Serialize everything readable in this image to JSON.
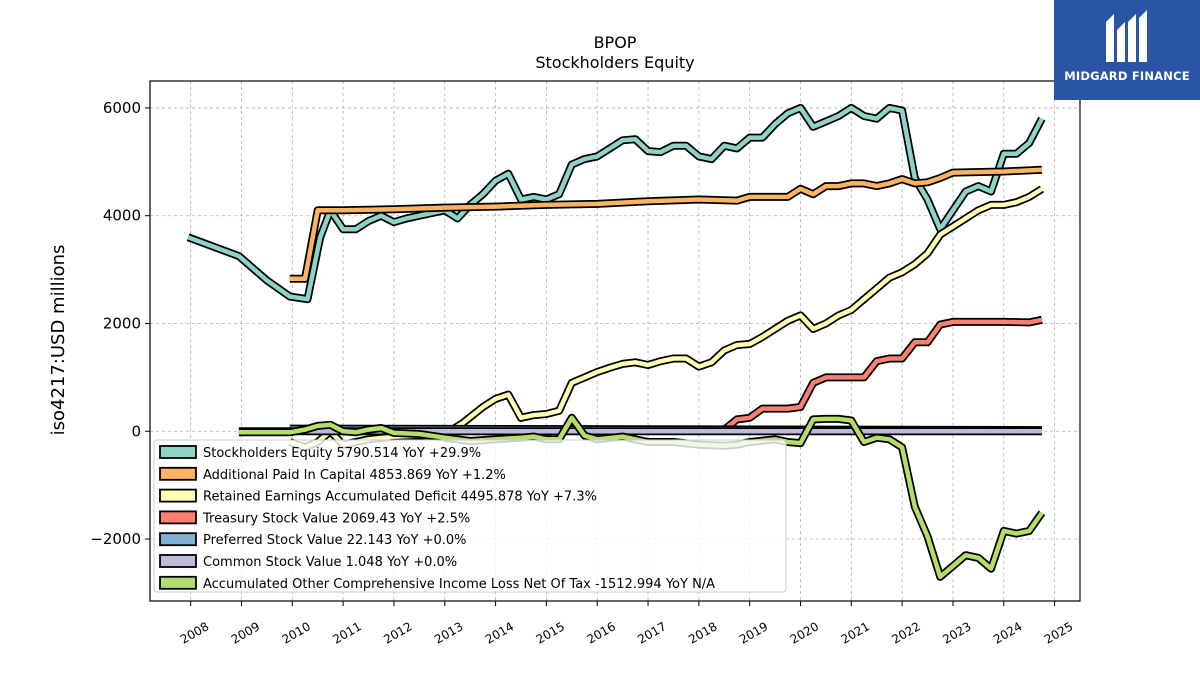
{
  "chart_data": {
    "type": "line",
    "title": "BPOP",
    "subtitle": "Stockholders  Equity",
    "ylabel": "iso4217:USD  millions",
    "xlabel": "",
    "xlim": [
      2007.2,
      2025.5
    ],
    "ylim": [
      -3150,
      6500
    ],
    "yticks": [
      -2000,
      0,
      2000,
      4000,
      6000
    ],
    "xticks": [
      "2008",
      "2009",
      "2010",
      "2011",
      "2012",
      "2013",
      "2014",
      "2015",
      "2016",
      "2017",
      "2018",
      "2019",
      "2020",
      "2021",
      "2022",
      "2023",
      "2024",
      "2025"
    ],
    "grid": true,
    "legend_position": "lower-left",
    "series": [
      {
        "name": "Stockholders Equity",
        "legend": "Stockholders Equity  5790.514 YoY +29.9%",
        "color": "#8dd3c7",
        "points": [
          [
            2007.95,
            3600
          ],
          [
            2008.95,
            3250
          ],
          [
            2009.5,
            2800
          ],
          [
            2009.95,
            2500
          ],
          [
            2010.3,
            2450
          ],
          [
            2010.55,
            3600
          ],
          [
            2010.75,
            4100
          ],
          [
            2011.0,
            3750
          ],
          [
            2011.25,
            3750
          ],
          [
            2011.5,
            3900
          ],
          [
            2011.75,
            4000
          ],
          [
            2012.0,
            3880
          ],
          [
            2012.25,
            3950
          ],
          [
            2012.5,
            4000
          ],
          [
            2012.75,
            4050
          ],
          [
            2013.0,
            4100
          ],
          [
            2013.25,
            3950
          ],
          [
            2013.5,
            4200
          ],
          [
            2013.75,
            4400
          ],
          [
            2014.0,
            4650
          ],
          [
            2014.25,
            4780
          ],
          [
            2014.5,
            4300
          ],
          [
            2014.75,
            4350
          ],
          [
            2015.0,
            4300
          ],
          [
            2015.25,
            4400
          ],
          [
            2015.5,
            4950
          ],
          [
            2015.75,
            5050
          ],
          [
            2016.0,
            5100
          ],
          [
            2016.25,
            5250
          ],
          [
            2016.5,
            5400
          ],
          [
            2016.75,
            5420
          ],
          [
            2017.0,
            5200
          ],
          [
            2017.25,
            5180
          ],
          [
            2017.5,
            5300
          ],
          [
            2017.75,
            5300
          ],
          [
            2018.0,
            5100
          ],
          [
            2018.25,
            5050
          ],
          [
            2018.5,
            5300
          ],
          [
            2018.75,
            5250
          ],
          [
            2019.0,
            5450
          ],
          [
            2019.25,
            5450
          ],
          [
            2019.5,
            5700
          ],
          [
            2019.75,
            5900
          ],
          [
            2020.0,
            6000
          ],
          [
            2020.25,
            5650
          ],
          [
            2020.5,
            5750
          ],
          [
            2020.75,
            5850
          ],
          [
            2021.0,
            6000
          ],
          [
            2021.25,
            5850
          ],
          [
            2021.5,
            5800
          ],
          [
            2021.75,
            6000
          ],
          [
            2022.0,
            5950
          ],
          [
            2022.25,
            4700
          ],
          [
            2022.5,
            4300
          ],
          [
            2022.75,
            3750
          ],
          [
            2023.0,
            4100
          ],
          [
            2023.25,
            4450
          ],
          [
            2023.5,
            4550
          ],
          [
            2023.75,
            4450
          ],
          [
            2024.0,
            5150
          ],
          [
            2024.25,
            5150
          ],
          [
            2024.5,
            5350
          ],
          [
            2024.75,
            5800
          ]
        ]
      },
      {
        "name": "Additional Paid In Capital",
        "legend": "Additional Paid In Capital  4853.869 YoY +1.2%",
        "color": "#fdb462",
        "points": [
          [
            2009.95,
            2830
          ],
          [
            2010.25,
            2830
          ],
          [
            2010.5,
            4100
          ],
          [
            2011.0,
            4100
          ],
          [
            2012.0,
            4120
          ],
          [
            2013.0,
            4150
          ],
          [
            2014.0,
            4170
          ],
          [
            2015.0,
            4200
          ],
          [
            2016.0,
            4220
          ],
          [
            2017.0,
            4270
          ],
          [
            2018.0,
            4300
          ],
          [
            2018.75,
            4280
          ],
          [
            2019.0,
            4350
          ],
          [
            2019.75,
            4350
          ],
          [
            2020.0,
            4500
          ],
          [
            2020.25,
            4400
          ],
          [
            2020.5,
            4550
          ],
          [
            2020.75,
            4550
          ],
          [
            2021.0,
            4600
          ],
          [
            2021.25,
            4600
          ],
          [
            2021.5,
            4550
          ],
          [
            2021.75,
            4600
          ],
          [
            2022.0,
            4680
          ],
          [
            2022.25,
            4600
          ],
          [
            2022.5,
            4620
          ],
          [
            2022.75,
            4700
          ],
          [
            2023.0,
            4800
          ],
          [
            2024.0,
            4820
          ],
          [
            2024.75,
            4853
          ]
        ]
      },
      {
        "name": "Retained Earnings Accumulated Deficit",
        "legend": "Retained Earnings Accumulated Deficit  4495.878 YoY +7.3%",
        "color": "#ffffb3",
        "points": [
          [
            2009.95,
            -200
          ],
          [
            2010.25,
            -300
          ],
          [
            2010.5,
            -200
          ],
          [
            2010.75,
            0
          ],
          [
            2011.0,
            -250
          ],
          [
            2011.5,
            -150
          ],
          [
            2012.0,
            -100
          ],
          [
            2012.5,
            -80
          ],
          [
            2013.0,
            -60
          ],
          [
            2013.35,
            150
          ],
          [
            2013.75,
            450
          ],
          [
            2014.0,
            600
          ],
          [
            2014.25,
            680
          ],
          [
            2014.5,
            250
          ],
          [
            2014.75,
            300
          ],
          [
            2015.0,
            320
          ],
          [
            2015.25,
            380
          ],
          [
            2015.5,
            900
          ],
          [
            2015.75,
            1000
          ],
          [
            2016.0,
            1100
          ],
          [
            2016.25,
            1180
          ],
          [
            2016.5,
            1250
          ],
          [
            2016.75,
            1280
          ],
          [
            2017.0,
            1230
          ],
          [
            2017.25,
            1300
          ],
          [
            2017.5,
            1350
          ],
          [
            2017.75,
            1350
          ],
          [
            2018.0,
            1200
          ],
          [
            2018.25,
            1280
          ],
          [
            2018.5,
            1500
          ],
          [
            2018.75,
            1600
          ],
          [
            2019.0,
            1620
          ],
          [
            2019.25,
            1750
          ],
          [
            2019.5,
            1900
          ],
          [
            2019.75,
            2050
          ],
          [
            2020.0,
            2150
          ],
          [
            2020.25,
            1900
          ],
          [
            2020.5,
            2000
          ],
          [
            2020.75,
            2150
          ],
          [
            2021.0,
            2250
          ],
          [
            2021.25,
            2450
          ],
          [
            2021.5,
            2650
          ],
          [
            2021.75,
            2850
          ],
          [
            2022.0,
            2950
          ],
          [
            2022.25,
            3100
          ],
          [
            2022.5,
            3300
          ],
          [
            2022.75,
            3650
          ],
          [
            2023.0,
            3800
          ],
          [
            2023.25,
            3950
          ],
          [
            2023.5,
            4100
          ],
          [
            2023.75,
            4200
          ],
          [
            2024.0,
            4200
          ],
          [
            2024.25,
            4250
          ],
          [
            2024.5,
            4350
          ],
          [
            2024.75,
            4495
          ]
        ]
      },
      {
        "name": "Treasury Stock Value",
        "legend": "Treasury Stock Value  2069.43 YoY +2.5%",
        "color": "#fb8072",
        "points": [
          [
            2009.95,
            20
          ],
          [
            2018.5,
            30
          ],
          [
            2018.75,
            220
          ],
          [
            2019.0,
            250
          ],
          [
            2019.25,
            420
          ],
          [
            2019.5,
            420
          ],
          [
            2019.75,
            420
          ],
          [
            2020.0,
            450
          ],
          [
            2020.25,
            900
          ],
          [
            2020.5,
            1000
          ],
          [
            2020.75,
            1000
          ],
          [
            2021.0,
            1000
          ],
          [
            2021.25,
            1000
          ],
          [
            2021.5,
            1300
          ],
          [
            2021.75,
            1350
          ],
          [
            2022.0,
            1350
          ],
          [
            2022.25,
            1650
          ],
          [
            2022.5,
            1650
          ],
          [
            2022.75,
            1980
          ],
          [
            2023.0,
            2030
          ],
          [
            2023.5,
            2030
          ],
          [
            2024.0,
            2030
          ],
          [
            2024.5,
            2020
          ],
          [
            2024.75,
            2069
          ]
        ]
      },
      {
        "name": "Preferred Stock Value",
        "legend": "Preferred Stock Value  22.143 YoY +0.0%",
        "color": "#80b1d3",
        "points": [
          [
            2009.95,
            50
          ],
          [
            2024.75,
            22
          ]
        ]
      },
      {
        "name": "Common Stock Value",
        "legend": "Common Stock Value  1.048 YoY +0.0%",
        "color": "#bebada",
        "points": [
          [
            2008.95,
            0
          ],
          [
            2024.75,
            1
          ]
        ]
      },
      {
        "name": "Accumulated Other Comprehensive Income Loss Net Of Tax",
        "legend": "Accumulated Other Comprehensive Income Loss Net Of Tax  -1512.994 YoY N/A",
        "color": "#b3de69",
        "points": [
          [
            2008.95,
            -20
          ],
          [
            2009.5,
            -20
          ],
          [
            2009.95,
            -20
          ],
          [
            2010.25,
            30
          ],
          [
            2010.5,
            100
          ],
          [
            2010.75,
            120
          ],
          [
            2011.0,
            0
          ],
          [
            2011.25,
            -20
          ],
          [
            2011.5,
            30
          ],
          [
            2011.75,
            60
          ],
          [
            2012.0,
            -30
          ],
          [
            2012.5,
            -50
          ],
          [
            2013.0,
            -120
          ],
          [
            2013.5,
            -180
          ],
          [
            2014.0,
            -150
          ],
          [
            2014.5,
            -120
          ],
          [
            2014.75,
            -100
          ],
          [
            2015.0,
            -150
          ],
          [
            2015.25,
            -150
          ],
          [
            2015.5,
            250
          ],
          [
            2015.75,
            -80
          ],
          [
            2016.0,
            -150
          ],
          [
            2016.5,
            -100
          ],
          [
            2016.75,
            -150
          ],
          [
            2017.0,
            -200
          ],
          [
            2017.5,
            -200
          ],
          [
            2018.0,
            -250
          ],
          [
            2018.5,
            -270
          ],
          [
            2018.75,
            -250
          ],
          [
            2019.0,
            -200
          ],
          [
            2019.5,
            -150
          ],
          [
            2019.75,
            -200
          ],
          [
            2020.0,
            -220
          ],
          [
            2020.25,
            220
          ],
          [
            2020.5,
            230
          ],
          [
            2020.75,
            230
          ],
          [
            2021.0,
            200
          ],
          [
            2021.25,
            -200
          ],
          [
            2021.5,
            -120
          ],
          [
            2021.75,
            -150
          ],
          [
            2022.0,
            -300
          ],
          [
            2022.25,
            -1400
          ],
          [
            2022.5,
            -1950
          ],
          [
            2022.75,
            -2700
          ],
          [
            2023.0,
            -2500
          ],
          [
            2023.25,
            -2300
          ],
          [
            2023.5,
            -2350
          ],
          [
            2023.75,
            -2550
          ],
          [
            2024.0,
            -1850
          ],
          [
            2024.25,
            -1900
          ],
          [
            2024.5,
            -1850
          ],
          [
            2024.75,
            -1513
          ]
        ]
      }
    ]
  },
  "brand": {
    "name": "MIDGARD FINANCE",
    "color": "#2a55a6"
  }
}
